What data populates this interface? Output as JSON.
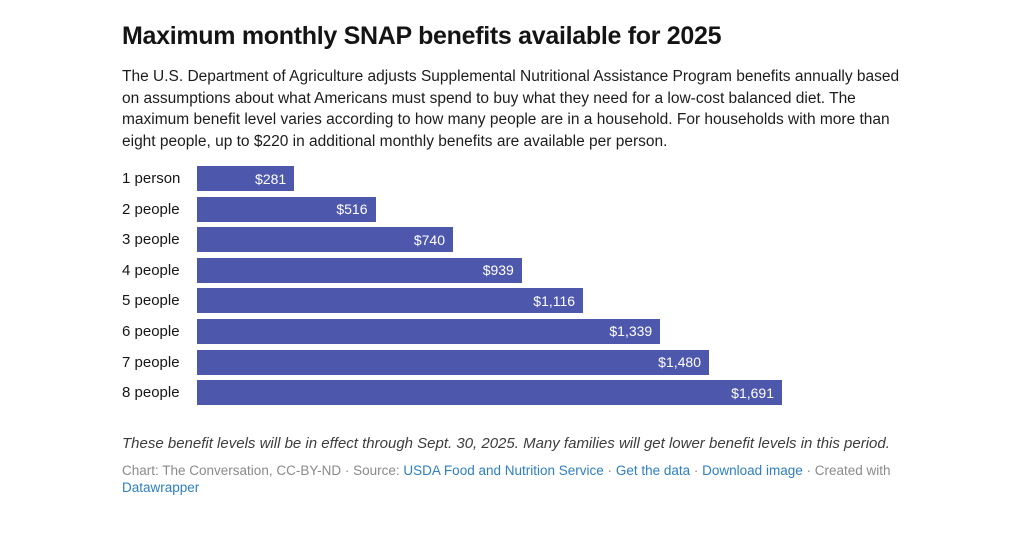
{
  "header": {
    "title": "Maximum monthly SNAP benefits available for 2025",
    "description": "The U.S. Department of Agriculture adjusts Supplemental Nutritional Assistance Program benefits annually based on assumptions about what Americans must spend to buy what they need for a low-cost balanced diet. The maximum benefit level varies according to how many people are in a household. For households with more than eight people, up to $220 in additional monthly benefits are available per person."
  },
  "chart_data": {
    "type": "bar",
    "orientation": "horizontal",
    "title": "Maximum monthly SNAP benefits available for 2025",
    "categories": [
      "1 person",
      "2 people",
      "3 people",
      "4 people",
      "5 people",
      "6 people",
      "7 people",
      "8 people"
    ],
    "values": [
      281,
      516,
      740,
      939,
      1116,
      1339,
      1480,
      1691
    ],
    "value_labels": [
      "$281",
      "$516",
      "$740",
      "$939",
      "$1,116",
      "$1,339",
      "$1,480",
      "$1,691"
    ],
    "xlabel": "",
    "ylabel": "",
    "xlim": [
      0,
      1691
    ],
    "grid": false,
    "legend": false,
    "bar_color": "#4d58ac",
    "value_label_color": "#ffffff"
  },
  "footer": {
    "footnote": "These benefit levels will be in effect through Sept. 30, 2025. Many families will get lower benefit levels in this period.",
    "attribution": {
      "chart_credit": "Chart: The Conversation, CC-BY-ND",
      "separator": "·",
      "source_label": "Source:",
      "source_link": "USDA Food and Nutrition Service",
      "get_data_link": "Get the data",
      "download_image_link": "Download image",
      "created_with": "Created with",
      "datawrapper_link": "Datawrapper"
    }
  },
  "colors": {
    "background": "#ffffff",
    "bar": "#4d58ac",
    "bar_value_text": "#ffffff",
    "title_text": "#141414",
    "body_text": "#1c1c1c",
    "footnote_text": "#3d3d3d",
    "attribution_text": "#8a8a8a",
    "link": "#2d7fc1"
  }
}
